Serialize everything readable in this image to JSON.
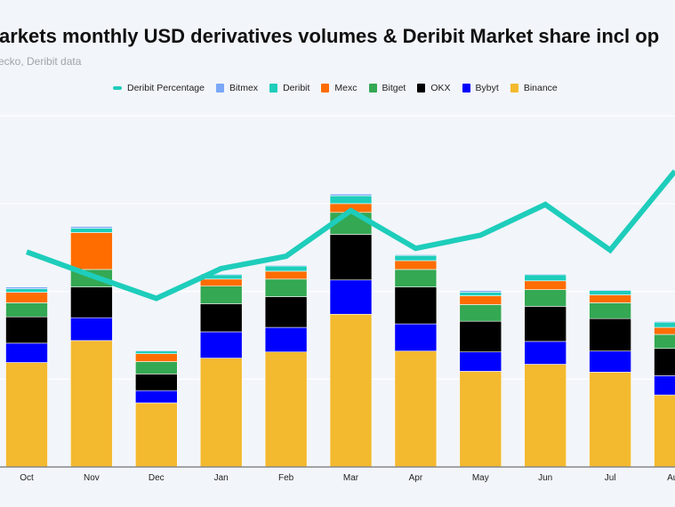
{
  "chart_data": {
    "type": "bar",
    "title": "arkets monthly USD derivatives volumes & Deribit Market share incl op",
    "subtitle": "ecko, Deribit data",
    "stacked": true,
    "grid": true,
    "legend_position": "top",
    "categories": [
      "Oct",
      "Nov",
      "Dec",
      "Jan",
      "Feb",
      "Mar",
      "Apr",
      "May",
      "Jun",
      "Jul",
      "Aug"
    ],
    "series": [
      {
        "name": "Binance",
        "color": "#f3b92f",
        "values": [
          1.19,
          1.44,
          0.73,
          1.24,
          1.31,
          1.74,
          1.32,
          1.09,
          1.17,
          1.08,
          0.82
        ]
      },
      {
        "name": "Bybyt",
        "color": "#0000ff",
        "values": [
          0.22,
          0.26,
          0.14,
          0.3,
          0.28,
          0.39,
          0.31,
          0.22,
          0.26,
          0.24,
          0.22
        ]
      },
      {
        "name": "OKX",
        "color": "#000000",
        "values": [
          0.3,
          0.35,
          0.19,
          0.32,
          0.35,
          0.52,
          0.42,
          0.35,
          0.4,
          0.37,
          0.31
        ]
      },
      {
        "name": "Bitget",
        "color": "#34a853",
        "values": [
          0.16,
          0.2,
          0.14,
          0.2,
          0.2,
          0.25,
          0.2,
          0.19,
          0.19,
          0.18,
          0.16
        ]
      },
      {
        "name": "Mexc",
        "color": "#ff6d00",
        "values": [
          0.12,
          0.42,
          0.09,
          0.08,
          0.09,
          0.1,
          0.1,
          0.1,
          0.1,
          0.09,
          0.08
        ]
      },
      {
        "name": "Deribit",
        "color": "#1ecdbb",
        "values": [
          0.04,
          0.05,
          0.03,
          0.05,
          0.06,
          0.09,
          0.06,
          0.04,
          0.07,
          0.05,
          0.06
        ]
      },
      {
        "name": "Bitmex",
        "color": "#7aa7f7",
        "values": [
          0.02,
          0.02,
          0.01,
          0.01,
          0.01,
          0.02,
          0.01,
          0.02,
          0.01,
          0.01,
          0.01
        ]
      }
    ],
    "line": {
      "name": "Deribit Percentage",
      "color": "#1ecdbb",
      "values": [
        2.45,
        2.18,
        1.92,
        2.26,
        2.4,
        2.92,
        2.49,
        2.64,
        2.99,
        2.47,
        3.37
      ]
    },
    "ylim": [
      0,
      4
    ]
  },
  "legend": [
    "Deribit Percentage",
    "Bitmex",
    "Deribit",
    "Mexc",
    "Bitget",
    "OKX",
    "Bybyt",
    "Binance"
  ]
}
